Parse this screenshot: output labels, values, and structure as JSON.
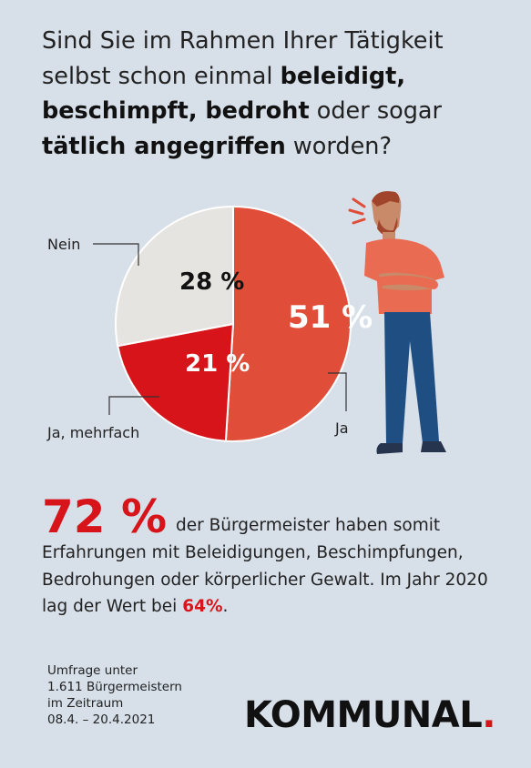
{
  "title": {
    "p1": "Sind Sie im Rahmen Ihrer Tätigkeit selbst schon einmal ",
    "b1": "beleidigt, beschimpft, bedroht",
    "p2": " oder sogar ",
    "b2": "tätlich angegriffen",
    "p3": " worden?"
  },
  "chart_data": {
    "type": "pie",
    "title": "",
    "slices": [
      {
        "label": "Ja",
        "value": 51,
        "value_label": "51 %",
        "color": "#e04e39"
      },
      {
        "label": "Ja, mehrfach",
        "value": 21,
        "value_label": "21 %",
        "color": "#d7141a"
      },
      {
        "label": "Nein",
        "value": 28,
        "value_label": "28 %",
        "color": "#e6e4e0"
      }
    ]
  },
  "stat": {
    "big": "72 %",
    "text": " der Bürgermeister haben somit Erfahrungen mit Beleidigungen, Beschimpfungen, Bedrohungen oder körperlicher Gewalt. Im Jahr 2020 lag der Wert bei ",
    "highlight": "64%",
    "end": "."
  },
  "source": {
    "line1": "Umfrage unter",
    "line2": "1.611 Bürgermeistern",
    "line3": "im Zeitraum",
    "line4": "08.4. – 20.4.2021"
  },
  "logo": {
    "text": "KOMMUNAL",
    "dot": "."
  },
  "figure": {
    "icon": "angry-man-illustration"
  }
}
